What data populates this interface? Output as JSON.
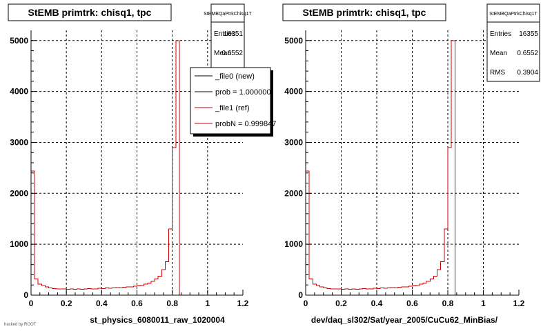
{
  "chart_data": [
    {
      "type": "bar",
      "title": "StEMB primtrk: chisq1, tpc",
      "xlabel": "st_physics_6080011_raw_1020004",
      "ylabel": "",
      "xlim": [
        0,
        1.2
      ],
      "ylim": [
        0,
        5200
      ],
      "x_ticks": [
        "0",
        "0.2",
        "0.4",
        "0.6",
        "0.8",
        "1",
        "1.2"
      ],
      "y_ticks": [
        "0",
        "1000",
        "2000",
        "3000",
        "4000",
        "5000"
      ],
      "grid": true,
      "stats_box": {
        "name": "StEMBQaPtrkChisq1T",
        "rows": [
          {
            "label": "Entries",
            "value": "16351"
          },
          {
            "label": "Mean",
            "value": "0.6552"
          }
        ]
      },
      "legend": {
        "placement": "top-right",
        "entries": [
          {
            "label": "_file0 (new)",
            "color": "#000000"
          },
          {
            "label": "prob = 1.000000",
            "color": "#000000"
          },
          {
            "label": "_file1 (ref)",
            "color": "#cc0000"
          },
          {
            "label": "probN = 0.999847",
            "color": "#cc0000"
          }
        ]
      },
      "series": [
        {
          "name": "_file0 (new)",
          "color": "#000000",
          "bin_width": 0.02,
          "values": [
            2440,
            320,
            215,
            190,
            165,
            140,
            130,
            120,
            125,
            120,
            115,
            120,
            115,
            120,
            115,
            125,
            130,
            120,
            125,
            135,
            130,
            140,
            135,
            145,
            150,
            145,
            155,
            160,
            165,
            175,
            180,
            190,
            220,
            240,
            270,
            320,
            370,
            500,
            660,
            1300,
            2900,
            5000,
            0,
            0,
            0,
            0,
            0,
            0,
            0,
            0,
            0,
            0,
            0,
            0,
            0,
            0,
            0,
            0,
            0,
            0
          ]
        },
        {
          "name": "_file1 (ref)",
          "color": "#cc0000",
          "bin_width": 0.02,
          "values": [
            2440,
            320,
            215,
            190,
            165,
            140,
            130,
            120,
            125,
            120,
            115,
            120,
            115,
            120,
            115,
            125,
            130,
            120,
            125,
            135,
            130,
            140,
            135,
            145,
            150,
            145,
            155,
            160,
            165,
            175,
            180,
            190,
            220,
            240,
            270,
            320,
            370,
            500,
            660,
            1300,
            2900,
            5000,
            0,
            0,
            0,
            0,
            0,
            0,
            0,
            0,
            0,
            0,
            0,
            0,
            0,
            0,
            0,
            0,
            0,
            0
          ]
        }
      ]
    },
    {
      "type": "bar",
      "title": "StEMB primtrk: chisq1, tpc",
      "xlabel": "dev/daq_sl302/Sat/year_2005/CuCu62_MinBias/",
      "ylabel": "",
      "xlim": [
        0,
        1.2
      ],
      "ylim": [
        0,
        5200
      ],
      "x_ticks": [
        "0",
        "0.2",
        "0.4",
        "0.6",
        "0.8",
        "1",
        "1.2"
      ],
      "y_ticks": [
        "0",
        "1000",
        "2000",
        "3000",
        "4000",
        "5000"
      ],
      "grid": true,
      "stats_box": {
        "name": "StEMBQaPtrkChisq1T",
        "rows": [
          {
            "label": "Entries",
            "value": "16355"
          },
          {
            "label": "Mean",
            "value": "0.6552"
          },
          {
            "label": "RMS",
            "value": "0.3904"
          }
        ]
      },
      "series": [
        {
          "name": "",
          "color": "#cc0000",
          "bin_width": 0.02,
          "values": [
            2440,
            320,
            215,
            190,
            165,
            140,
            130,
            120,
            125,
            120,
            115,
            120,
            115,
            120,
            115,
            125,
            130,
            120,
            125,
            135,
            130,
            140,
            135,
            145,
            150,
            145,
            155,
            160,
            165,
            175,
            180,
            190,
            220,
            240,
            270,
            320,
            370,
            500,
            660,
            1300,
            2900,
            5000,
            0,
            0,
            0,
            0,
            0,
            0,
            0,
            0,
            0,
            0,
            0,
            0,
            0,
            0,
            0,
            0,
            0,
            0
          ]
        }
      ]
    }
  ],
  "footer_text": "hacked by ROOT"
}
